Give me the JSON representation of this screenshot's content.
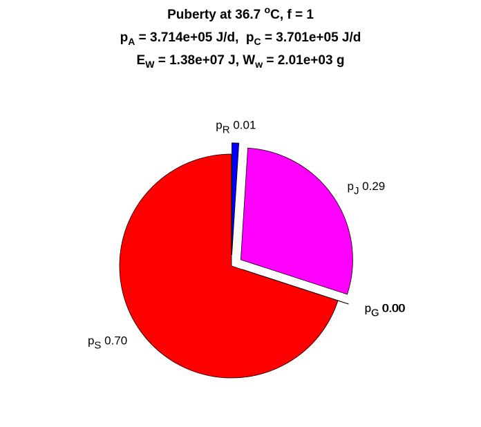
{
  "chart_data": {
    "type": "pie",
    "title": [
      [
        {
          "text": "Puberty at 36.7 "
        },
        {
          "sup": "o"
        },
        {
          "text": "C, f = 1"
        }
      ],
      [
        {
          "text": "p"
        },
        {
          "sub": "A"
        },
        {
          "text": " = 3.714e+05 J/d,  p"
        },
        {
          "sub": "C"
        },
        {
          "text": " = 3.701e+05 J/d"
        }
      ],
      [
        {
          "text": "E"
        },
        {
          "sub": "W"
        },
        {
          "text": " = 1.38e+07 J, W"
        },
        {
          "sub": "w"
        },
        {
          "text": " = 2.01e+03 g"
        }
      ]
    ],
    "labels": [
      {
        "text": "p",
        "sub": "R"
      },
      {
        "text": "p",
        "sub": "J"
      },
      {
        "text": "p",
        "sub": "C"
      },
      {
        "text": "p",
        "sub": "G"
      },
      {
        "text": "p",
        "sub": "S"
      }
    ],
    "values": [
      0.01,
      0.29,
      0,
      0,
      0.7
    ],
    "value_labels": [
      "0.01",
      "0.29",
      "0.00",
      "0.00",
      "0.70"
    ],
    "colors": [
      "#0000ff",
      "#ff00ff",
      "#000000",
      "#000000",
      "#ff0000"
    ],
    "explode": [
      true,
      true,
      true,
      true,
      false
    ]
  }
}
